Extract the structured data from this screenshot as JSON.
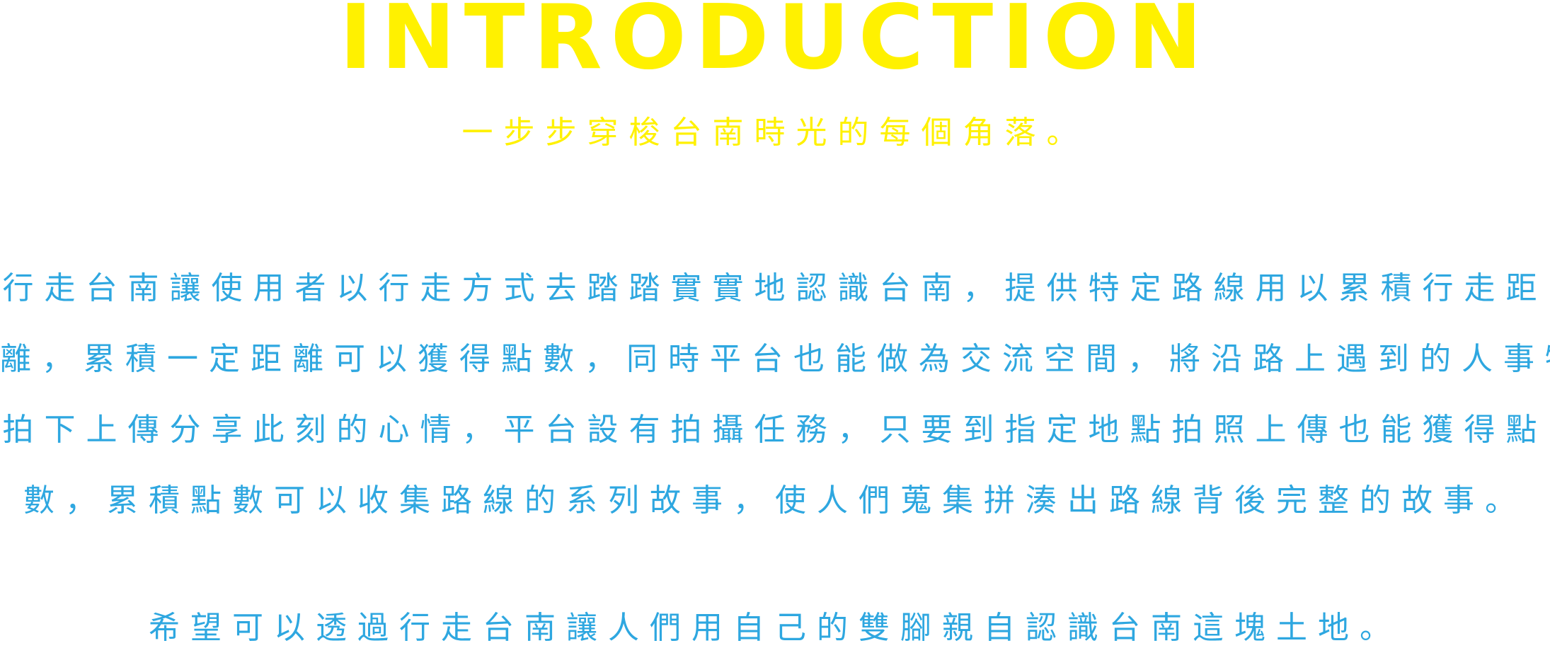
{
  "heading": {
    "title": "INTRODUCTION",
    "subtitle": "一步步穿梭台南時光的每個角落。"
  },
  "body": {
    "paragraph_1_lines": [
      "行走台南讓使用者以行走方式去踏踏實實地認識台南，提供特定路線用以累積行走距",
      "離，累積一定距離可以獲得點數，同時平台也能做為交流空間，將沿路上遇到的人事物",
      "拍下上傳分享此刻的心情，平台設有拍攝任務，只要到指定地點拍照上傳也能獲得點",
      "數，累積點數可以收集路線的系列故事，使人們蒐集拼湊出路線背後完整的故事。"
    ],
    "paragraph_2": "希望可以透過行走台南讓人們用自己的雙腳親自認識台南這塊土地。"
  },
  "colors": {
    "heading": "#FFF100",
    "body_text": "#2EA7E0",
    "background": "#FFFFFF"
  }
}
